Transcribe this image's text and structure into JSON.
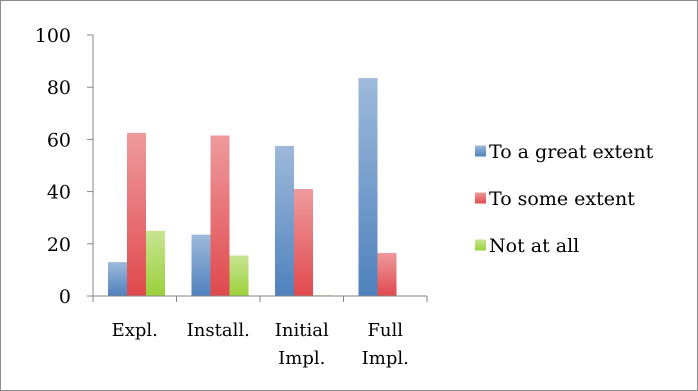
{
  "chart_data": {
    "type": "bar",
    "title": "",
    "xlabel": "",
    "ylabel": "",
    "ylim": [
      0,
      100
    ],
    "yticks": [
      0,
      20,
      40,
      60,
      80,
      100
    ],
    "grid": false,
    "legend_position": "right",
    "categories": [
      [
        "Expl."
      ],
      [
        "Install."
      ],
      [
        "Initial",
        "Impl."
      ],
      [
        "Full",
        "Impl."
      ]
    ],
    "series": [
      {
        "name": "To a great extent",
        "color": "#4f81bd",
        "values": [
          13,
          23.5,
          57.5,
          83.5
        ]
      },
      {
        "name": "To some extent",
        "color": "#e0494d",
        "values": [
          62.5,
          61.5,
          41,
          16.5
        ]
      },
      {
        "name": "Not at all",
        "color": "#9bd03a",
        "values": [
          25,
          15.5,
          0.3,
          0
        ]
      }
    ]
  }
}
